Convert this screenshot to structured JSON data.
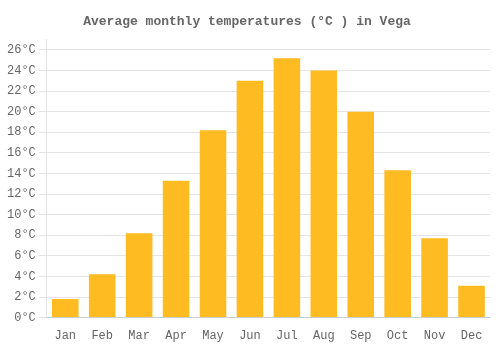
{
  "chart_data": {
    "type": "bar",
    "title": "Average monthly temperatures (°C ) in Vega",
    "categories": [
      "Jan",
      "Feb",
      "Mar",
      "Apr",
      "May",
      "Jun",
      "Jul",
      "Aug",
      "Sep",
      "Oct",
      "Nov",
      "Dec"
    ],
    "values": [
      1.8,
      4.2,
      8.2,
      13.3,
      18.2,
      23.0,
      25.2,
      24.0,
      20.0,
      14.3,
      7.7,
      3.1
    ],
    "color": "#FFBB22",
    "ylim": [
      0,
      27
    ],
    "yticks": [
      {
        "value": 0,
        "label": "0°C"
      },
      {
        "value": 2,
        "label": "2°C"
      },
      {
        "value": 4,
        "label": "4°C"
      },
      {
        "value": 6,
        "label": "6°C"
      },
      {
        "value": 8,
        "label": "8°C"
      },
      {
        "value": 10,
        "label": "10°C"
      },
      {
        "value": 12,
        "label": "12°C"
      },
      {
        "value": 14,
        "label": "14°C"
      },
      {
        "value": 16,
        "label": "16°C"
      },
      {
        "value": 18,
        "label": "18°C"
      },
      {
        "value": 20,
        "label": "20°C"
      },
      {
        "value": 22,
        "label": "22°C"
      },
      {
        "value": 24,
        "label": "24°C"
      },
      {
        "value": 26,
        "label": "26°C"
      }
    ],
    "grid": true
  }
}
